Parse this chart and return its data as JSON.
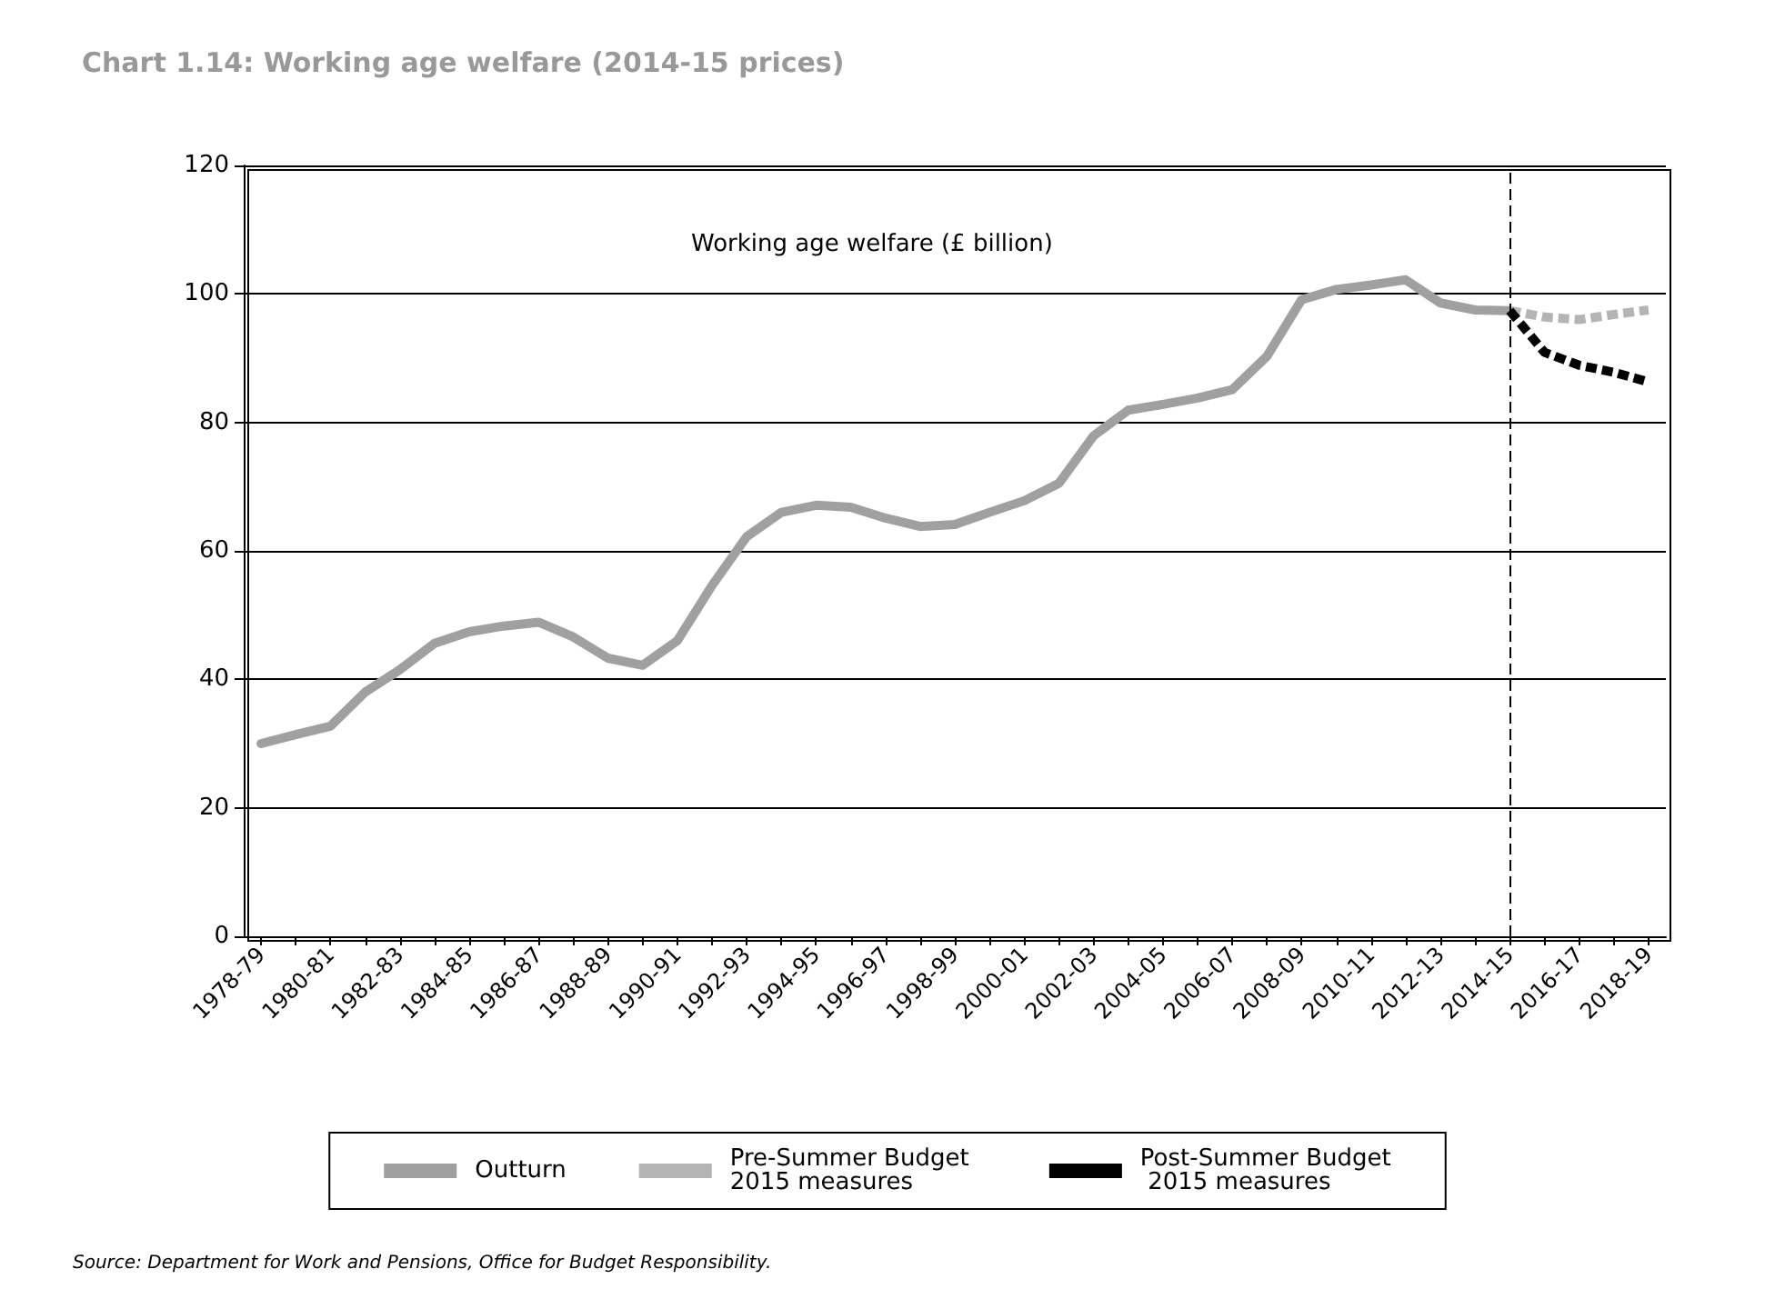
{
  "chart_data": {
    "type": "line",
    "title": "Chart 1.14: Working age welfare (2014-15 prices)",
    "categories": [
      "1978-79",
      null,
      "1980-81",
      null,
      "1982-83",
      null,
      "1984-85",
      null,
      "1986-87",
      null,
      "1988-89",
      null,
      "1990-91",
      null,
      "1992-93",
      null,
      "1994-95",
      null,
      "1996-97",
      null,
      "1998-99",
      null,
      "2000-01",
      null,
      "2002-03",
      null,
      "2004-05",
      null,
      "2006-07",
      null,
      "2008-09",
      null,
      "2010-11",
      null,
      "2012-13",
      null,
      "2014-15",
      null,
      "2016-17",
      null,
      "2018-19"
    ],
    "series": [
      {
        "name": "Outturn",
        "color": "#a0a0a0",
        "line_style": "solid",
        "values": [
          30,
          31.4,
          32.7,
          38.0,
          41.5,
          45.6,
          47.4,
          48.3,
          48.9,
          46.6,
          43.3,
          42.2,
          46.0,
          54.6,
          62.2,
          66.0,
          67.1,
          66.8,
          65.1,
          63.8,
          64.1,
          66.0,
          67.8,
          70.5,
          77.9,
          81.9,
          82.8,
          83.8,
          85.1,
          90.3,
          99.1,
          100.7,
          101.4,
          102.2,
          98.6,
          97.5,
          97.4,
          null,
          null,
          null,
          null
        ]
      },
      {
        "name": "Pre-Summer Budget 2015 measures",
        "color": "#b4b4b4",
        "line_style": "dashed",
        "values": [
          null,
          null,
          null,
          null,
          null,
          null,
          null,
          null,
          null,
          null,
          null,
          null,
          null,
          null,
          null,
          null,
          null,
          null,
          null,
          null,
          null,
          null,
          null,
          null,
          null,
          null,
          null,
          null,
          null,
          null,
          null,
          null,
          null,
          null,
          null,
          null,
          97.4,
          96.4,
          96.0,
          96.8,
          97.5
        ]
      },
      {
        "name": "Post-Summer Budget 2015 measures",
        "color": "#000000",
        "line_style": "dashed",
        "values": [
          null,
          null,
          null,
          null,
          null,
          null,
          null,
          null,
          null,
          null,
          null,
          null,
          null,
          null,
          null,
          null,
          null,
          null,
          null,
          null,
          null,
          null,
          null,
          null,
          null,
          null,
          null,
          null,
          null,
          null,
          null,
          null,
          null,
          null,
          null,
          null,
          97.4,
          90.9,
          88.9,
          87.8,
          86.3
        ]
      }
    ],
    "ylim": [
      0,
      120
    ],
    "yticks": [
      0,
      20,
      40,
      60,
      80,
      100,
      120
    ],
    "grid": "y",
    "legend": "bottom",
    "marker": "none",
    "ref_lines": [
      {
        "axis": "x",
        "value": "2014-15",
        "color": "#000000",
        "line_style": "dashed"
      }
    ],
    "annotations": [
      "Working age welfare (£ billion)",
      "Source: Department for Work and Pensions, Office for Budget Responsibility."
    ]
  }
}
